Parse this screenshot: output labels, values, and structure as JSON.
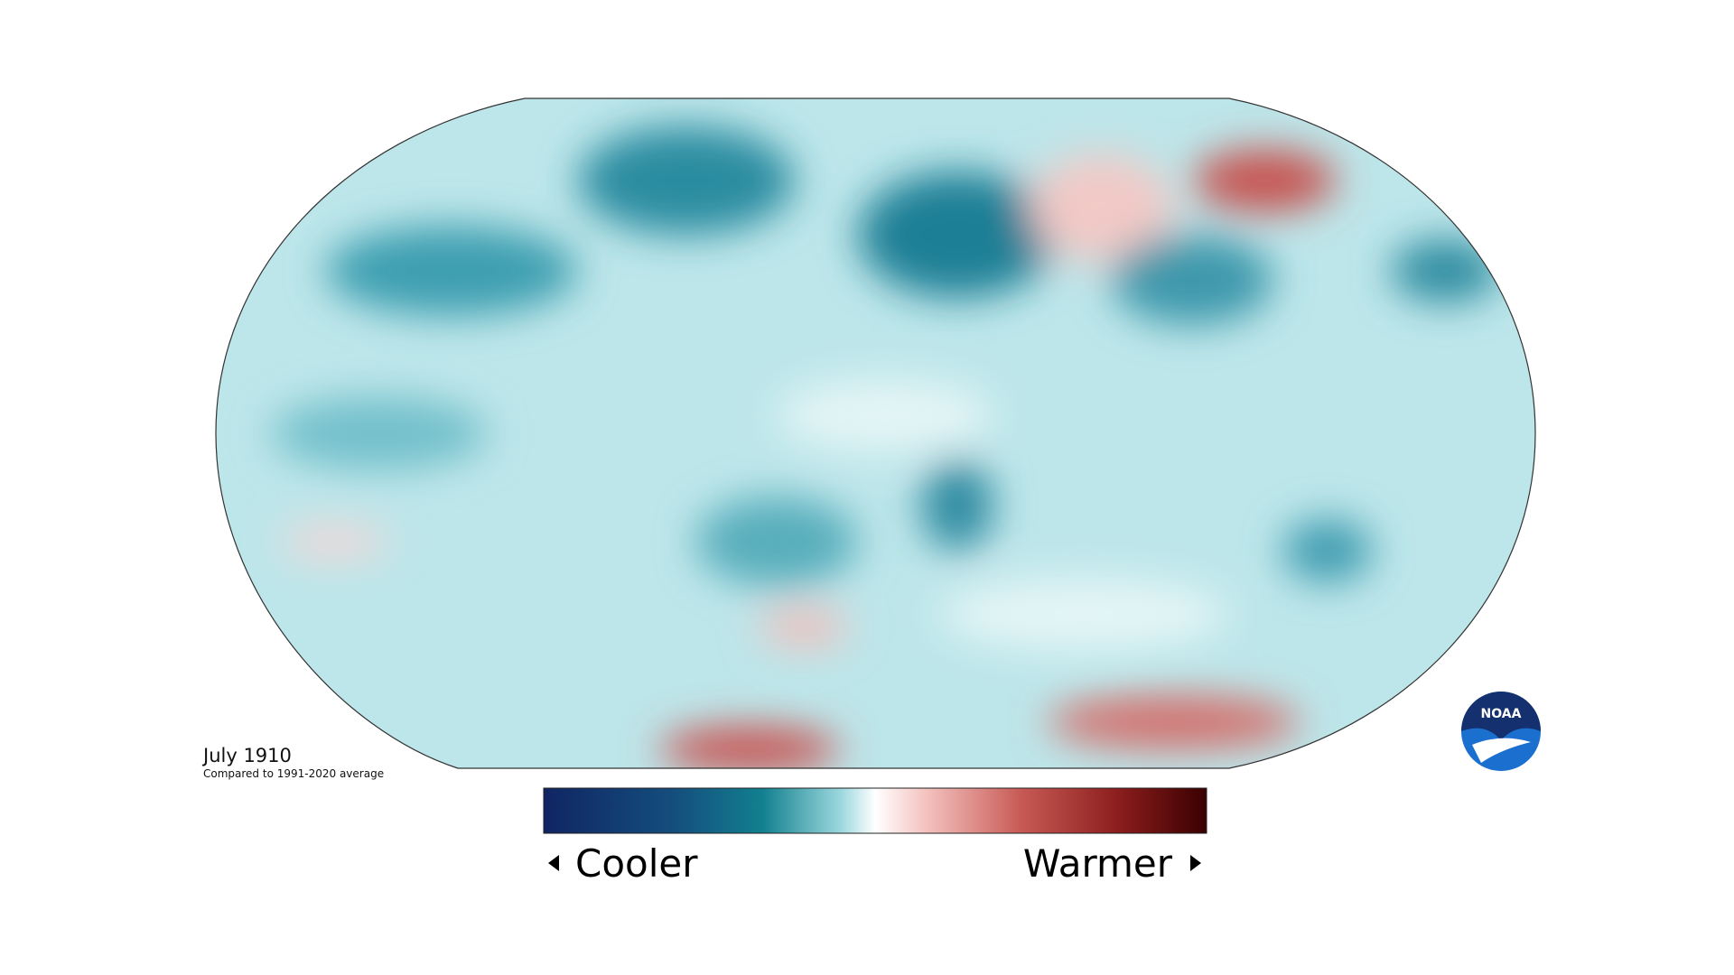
{
  "header": {
    "title": "July 1910",
    "subtitle": "Compared to 1991-2020 average"
  },
  "legend": {
    "low_label": "Cooler",
    "high_label": "Warmer"
  },
  "logo": {
    "text": "NOAA"
  }
}
